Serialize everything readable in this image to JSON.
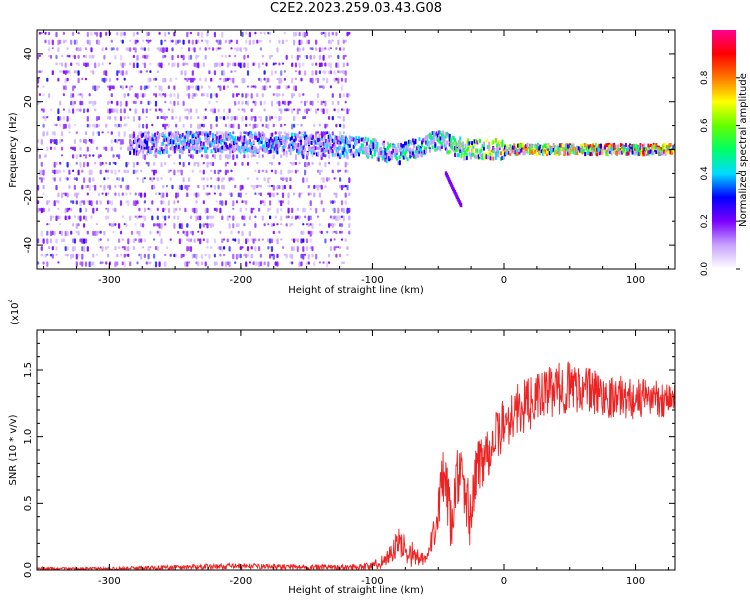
{
  "title": "C2E2.2023.259.03.43.G08",
  "chart_data": [
    {
      "type": "heatmap",
      "xlabel": "Height of straight line (km)",
      "ylabel": "Frequency (Hz)",
      "xlim": [
        -355,
        130
      ],
      "ylim": [
        -50,
        50
      ],
      "xticks": [
        -300,
        -200,
        -100,
        0,
        100
      ],
      "xtick_labels": [
        "-300",
        "-200",
        "-100",
        "0",
        "100"
      ],
      "yticks": [
        -40,
        -20,
        0,
        20,
        40
      ],
      "ytick_labels": [
        "-40",
        "-20",
        "0",
        "20",
        "40"
      ],
      "colorbar": {
        "label": "Normalized spectral amplitude",
        "range": [
          0.0,
          1.0
        ],
        "ticks": [
          0.0,
          0.2,
          0.4,
          0.6,
          0.8
        ],
        "tick_labels": [
          "0.0",
          "0.2",
          "0.4",
          "0.6",
          "0.8"
        ],
        "colors": [
          "#ffffff",
          "#c7a3ff",
          "#7a00ff",
          "#0000ff",
          "#00dcff",
          "#00ff64",
          "#64ff00",
          "#ffff00",
          "#ff7800",
          "#ff0000",
          "#ff0090"
        ]
      },
      "features": {
        "noise_region_x": [
          -355,
          -118
        ],
        "carrier_band": [
          {
            "x": -285,
            "freq": 2,
            "amp": 0.3
          },
          {
            "x": -240,
            "freq": 3,
            "amp": 0.45
          },
          {
            "x": -200,
            "freq": 3,
            "amp": 0.4
          },
          {
            "x": -150,
            "freq": 2,
            "amp": 0.35
          },
          {
            "x": -110,
            "freq": 1,
            "amp": 0.45
          },
          {
            "x": -80,
            "freq": -2,
            "amp": 0.45
          },
          {
            "x": -50,
            "freq": 4,
            "amp": 0.5
          },
          {
            "x": -30,
            "freq": 0,
            "amp": 0.65
          },
          {
            "x": 0,
            "freq": 0,
            "amp": 0.8
          },
          {
            "x": 130,
            "freq": 0,
            "amp": 0.9
          }
        ],
        "tail_branch": [
          {
            "x": -45,
            "freq": -10
          },
          {
            "x": -40,
            "freq": -16
          },
          {
            "x": -33,
            "freq": -24
          }
        ]
      }
    },
    {
      "type": "line",
      "xlabel": "Height of straight line (km)",
      "ylabel": "SNR (10 * v/v)",
      "y_multiplier": "(x10",
      "y_exponent": "4",
      "xlim": [
        -355,
        130
      ],
      "ylim": [
        0.0,
        1.8
      ],
      "xticks": [
        -300,
        -200,
        -100,
        0,
        100
      ],
      "xtick_labels": [
        "-300",
        "-200",
        "-100",
        "0",
        "100"
      ],
      "yticks": [
        0.0,
        0.5,
        1.0,
        1.5
      ],
      "ytick_labels": [
        "0.0",
        "0.5",
        "1.0",
        "1.5"
      ],
      "color": "#ee2222",
      "series": [
        {
          "x": [
            -355,
            -300,
            -250,
            -200,
            -150,
            -120,
            -100,
            -90,
            -80,
            -70,
            -60,
            -55,
            -50,
            -45,
            -40,
            -35,
            -30,
            -25,
            -20,
            -15,
            -10,
            -5,
            0,
            10,
            20,
            30,
            40,
            50,
            60,
            70,
            80,
            90,
            100,
            110,
            120,
            130
          ],
          "y": [
            0.01,
            0.01,
            0.02,
            0.03,
            0.02,
            0.02,
            0.03,
            0.08,
            0.2,
            0.12,
            0.06,
            0.2,
            0.5,
            0.7,
            0.3,
            0.75,
            0.55,
            0.4,
            0.8,
            0.85,
            0.95,
            1.0,
            1.1,
            1.2,
            1.25,
            1.32,
            1.35,
            1.38,
            1.36,
            1.33,
            1.3,
            1.3,
            1.28,
            1.3,
            1.28,
            1.3
          ],
          "noise_amplitude": [
            0.01,
            0.01,
            0.02,
            0.02,
            0.02,
            0.02,
            0.03,
            0.06,
            0.12,
            0.1,
            0.06,
            0.12,
            0.2,
            0.25,
            0.2,
            0.25,
            0.25,
            0.25,
            0.25,
            0.22,
            0.22,
            0.2,
            0.2,
            0.2,
            0.2,
            0.18,
            0.2,
            0.2,
            0.18,
            0.18,
            0.16,
            0.16,
            0.16,
            0.14,
            0.14,
            0.14
          ]
        }
      ]
    }
  ]
}
